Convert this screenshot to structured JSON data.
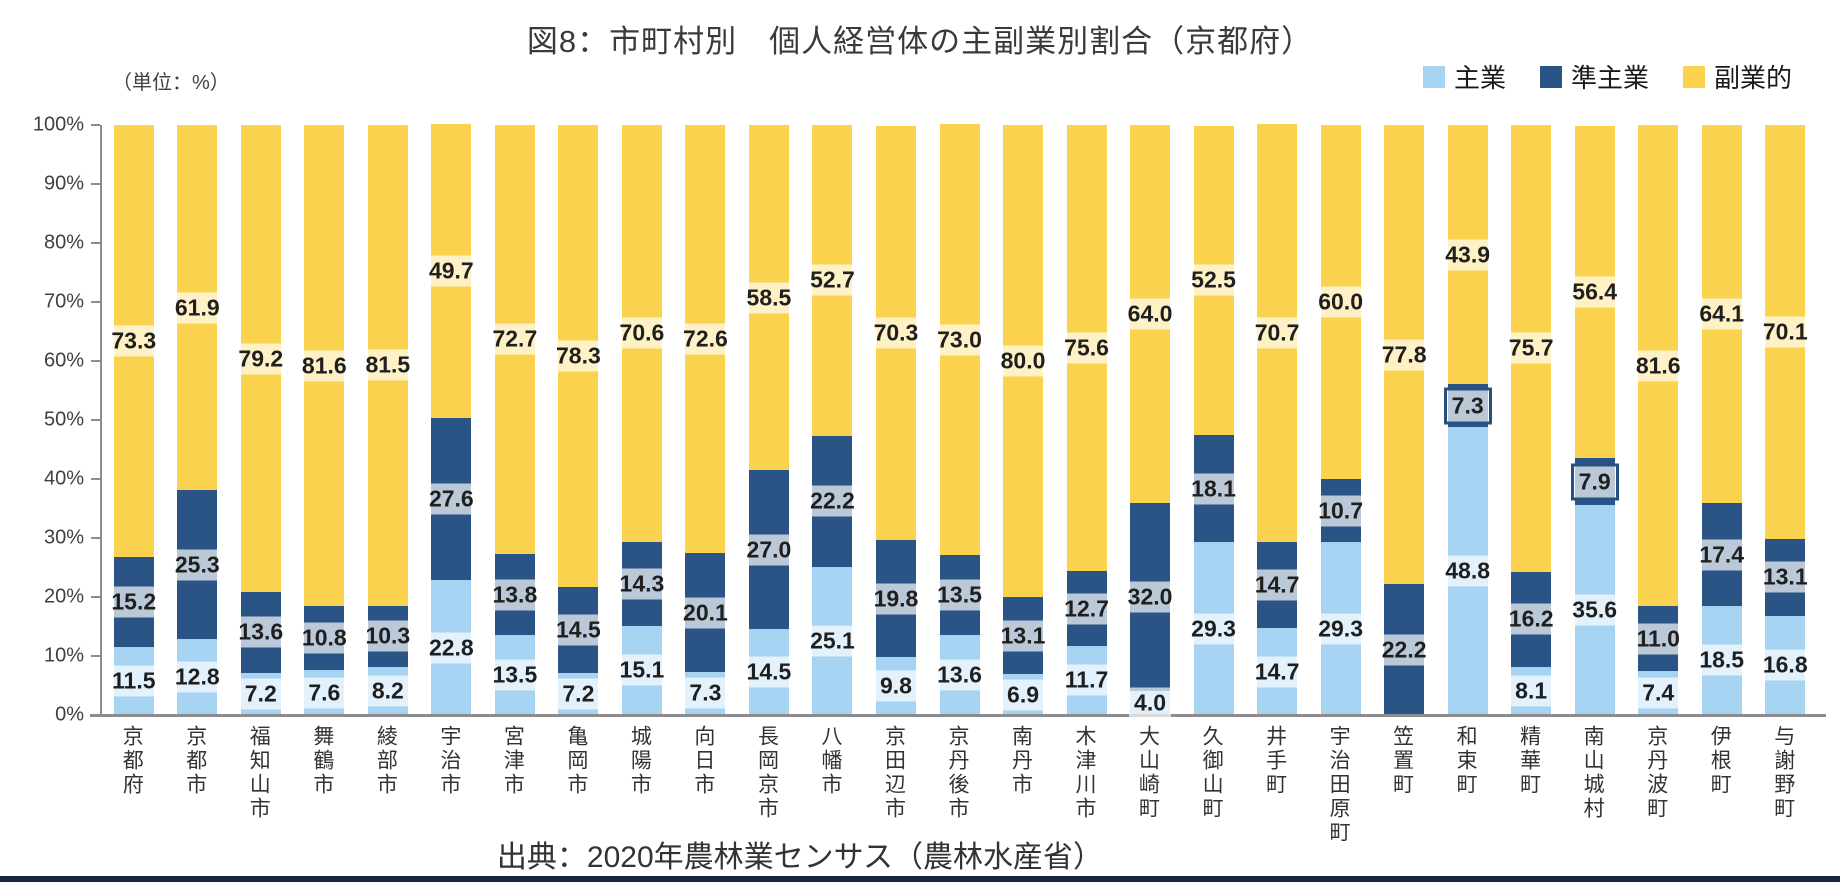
{
  "page": {
    "title": "図8：市町村別　個人経営体の主副業別割合（京都府）",
    "unit_label": "（単位：%）",
    "source": "出典：2020年農林業センサス（農林水産省）"
  },
  "legend": [
    {
      "label": "主業",
      "color": "#a6d3f2"
    },
    {
      "label": "準主業",
      "color": "#2a5485"
    },
    {
      "label": "副業的",
      "color": "#fad24e"
    }
  ],
  "chart_data": {
    "type": "bar",
    "stacked": true,
    "percent_stacked": true,
    "unit": "%",
    "ylim": [
      0,
      100
    ],
    "ytick_step": 10,
    "ytick_labels": [
      "0%",
      "10%",
      "20%",
      "30%",
      "40%",
      "50%",
      "60%",
      "70%",
      "80%",
      "90%",
      "100%"
    ],
    "grid": false,
    "legend_position": "top-right",
    "categories": [
      "京都府",
      "京都市",
      "福知山市",
      "舞鶴市",
      "綾部市",
      "宇治市",
      "宮津市",
      "亀岡市",
      "城陽市",
      "向日市",
      "長岡京市",
      "八幡市",
      "京田辺市",
      "京丹後市",
      "南丹市",
      "木津川市",
      "大山崎町",
      "久御山町",
      "井手町",
      "宇治田原町",
      "笠置町",
      "和束町",
      "精華町",
      "南山城村",
      "京丹波町",
      "伊根町",
      "与謝野町"
    ],
    "series": [
      {
        "name": "主業",
        "color": "#a6d3f2",
        "values": [
          11.5,
          12.8,
          7.2,
          7.6,
          8.2,
          22.8,
          13.5,
          7.2,
          15.1,
          7.3,
          14.5,
          25.1,
          9.8,
          13.6,
          6.9,
          11.7,
          4.0,
          29.3,
          14.7,
          29.3,
          0.0,
          48.8,
          8.1,
          35.6,
          7.4,
          18.5,
          16.8
        ]
      },
      {
        "name": "準主業",
        "color": "#2a5485",
        "values": [
          15.2,
          25.3,
          13.6,
          10.8,
          10.3,
          27.6,
          13.8,
          14.5,
          14.3,
          20.1,
          27.0,
          22.2,
          19.8,
          13.5,
          13.1,
          12.7,
          32.0,
          18.1,
          14.7,
          10.7,
          22.2,
          7.3,
          16.2,
          7.9,
          11.0,
          17.4,
          13.1
        ]
      },
      {
        "name": "副業的",
        "color": "#fad24e",
        "values": [
          73.3,
          61.9,
          79.2,
          81.6,
          81.5,
          49.7,
          72.7,
          78.3,
          70.6,
          72.6,
          58.5,
          52.7,
          70.3,
          73.0,
          80.0,
          75.6,
          64.0,
          52.5,
          70.7,
          60.0,
          77.8,
          43.9,
          75.7,
          56.4,
          81.6,
          64.1,
          70.1
        ]
      }
    ],
    "highlighted_labels": [
      {
        "category": "和束町",
        "series": "準主業"
      },
      {
        "category": "南山城村",
        "series": "準主業"
      }
    ],
    "hide_zero_labels": true
  }
}
